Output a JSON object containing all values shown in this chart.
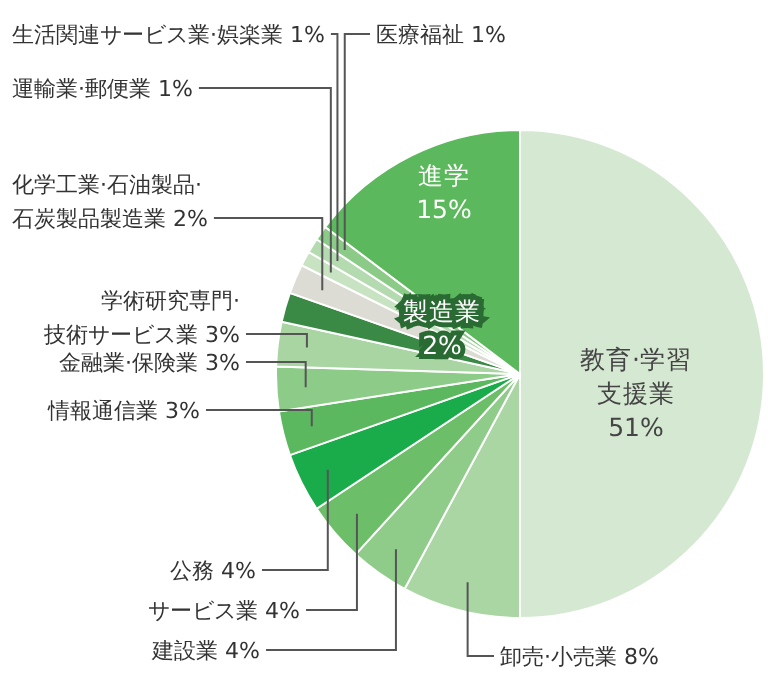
{
  "chart_data": {
    "type": "pie",
    "categories": [
      "教育·学習支援業",
      "卸売·小売業",
      "建設業",
      "サービス業",
      "公務",
      "情報通信業",
      "金融業·保険業",
      "学術研究専門·技術サービス業",
      "製造業",
      "化学工業·石油製品·石炭製品製造業",
      "運輸業·郵便業",
      "生活関連サービス業·娯楽業",
      "医療福祉",
      "進学"
    ],
    "values": [
      51,
      8,
      4,
      4,
      4,
      3,
      3,
      3,
      2,
      2,
      1,
      1,
      1,
      15
    ],
    "value_labels": [
      "51%",
      "8%",
      "4%",
      "4%",
      "4%",
      "3%",
      "3%",
      "3%",
      "2%",
      "2%",
      "1%",
      "1%",
      "1%",
      "15%"
    ],
    "colors": [
      "#d5e9d2",
      "#a9d6a3",
      "#8fcb89",
      "#6cbf68",
      "#1aac4a",
      "#5cb85f",
      "#8ccb88",
      "#a8d5a2",
      "#3a8a45",
      "#dcdcd4",
      "#c8e3c2",
      "#b4dab0",
      "#8cca88",
      "#5cb85c"
    ]
  }
}
